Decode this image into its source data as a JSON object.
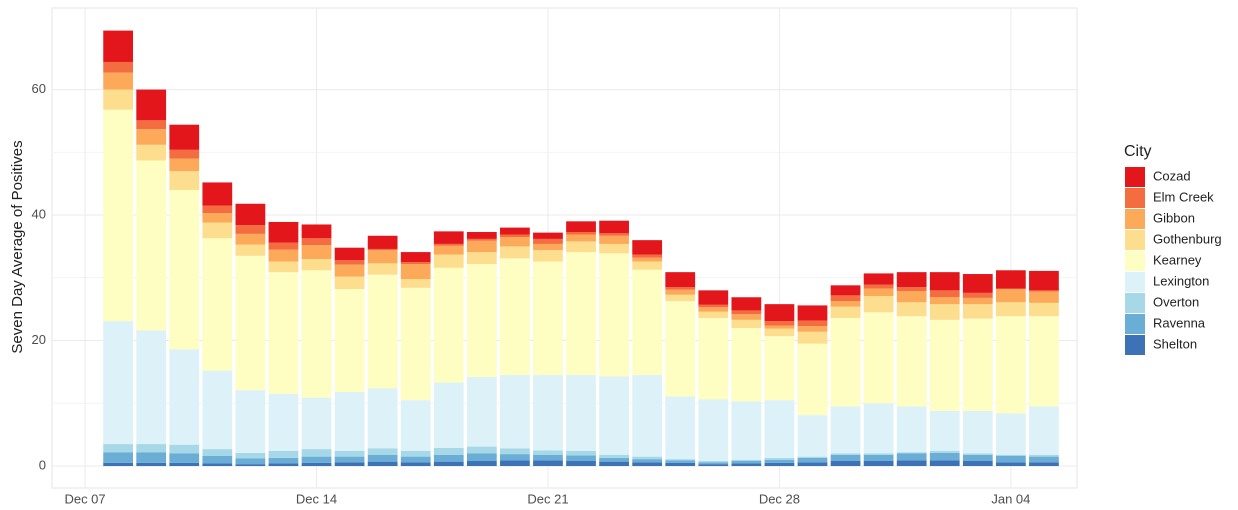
{
  "chart_data": {
    "type": "stacked_bar",
    "y_label": "Seven Day Average of Positives",
    "legend_title": "City",
    "legend": "right",
    "grid": true,
    "x": [
      "Dec 08",
      "Dec 09",
      "Dec 10",
      "Dec 11",
      "Dec 12",
      "Dec 13",
      "Dec 14",
      "Dec 15",
      "Dec 16",
      "Dec 17",
      "Dec 18",
      "Dec 19",
      "Dec 20",
      "Dec 21",
      "Dec 22",
      "Dec 23",
      "Dec 24",
      "Dec 25",
      "Dec 26",
      "Dec 27",
      "Dec 28",
      "Dec 29",
      "Dec 30",
      "Dec 31",
      "Jan 01",
      "Jan 02",
      "Jan 03",
      "Jan 04",
      "Jan 05"
    ],
    "xlim": [
      "Dec 06",
      "Jan 06"
    ],
    "xticks": [
      "Dec 07",
      "Dec 14",
      "Dec 21",
      "Dec 28",
      "Jan 04"
    ],
    "ylim": [
      -3.5,
      73
    ],
    "yticks": [
      0,
      20,
      40,
      60
    ],
    "series": [
      {
        "name": "Shelton",
        "color": "#3E72B6",
        "values": [
          0.5,
          0.5,
          0.5,
          0.4,
          0.3,
          0.4,
          0.5,
          0.6,
          0.7,
          0.6,
          0.7,
          0.8,
          0.9,
          0.9,
          0.8,
          0.7,
          0.6,
          0.5,
          0.3,
          0.4,
          0.5,
          0.6,
          0.8,
          0.8,
          0.9,
          0.9,
          0.8,
          0.6,
          0.6
        ]
      },
      {
        "name": "Ravenna",
        "color": "#6AADD5",
        "values": [
          1.7,
          1.7,
          1.5,
          1.2,
          0.9,
          0.9,
          1.0,
          0.9,
          1.1,
          0.9,
          1.1,
          1.2,
          1.0,
          0.9,
          0.9,
          0.6,
          0.5,
          0.4,
          0.3,
          0.4,
          0.5,
          0.7,
          1.0,
          1.0,
          1.1,
          1.2,
          1.0,
          1.0,
          0.9
        ]
      },
      {
        "name": "Overton",
        "color": "#A6D8E8",
        "values": [
          1.3,
          1.3,
          1.4,
          1.1,
          0.9,
          1.1,
          1.2,
          0.9,
          1.0,
          0.9,
          1.1,
          1.1,
          0.9,
          0.7,
          0.7,
          0.5,
          0.4,
          0.2,
          0.2,
          0.2,
          0.3,
          0.2,
          0.2,
          0.2,
          0.2,
          0.3,
          0.2,
          0.2,
          0.3
        ]
      },
      {
        "name": "Lexington",
        "color": "#DCF1F8",
        "values": [
          19.6,
          18.1,
          15.2,
          12.5,
          10.0,
          9.1,
          8.2,
          9.4,
          9.6,
          8.1,
          10.4,
          11.1,
          11.7,
          12.0,
          12.1,
          12.5,
          13.0,
          10.0,
          9.8,
          9.3,
          9.2,
          6.6,
          7.5,
          8.0,
          7.3,
          6.4,
          6.8,
          6.6,
          7.7
        ]
      },
      {
        "name": "Kearney",
        "color": "#FEFDC2",
        "values": [
          33.7,
          27.1,
          25.4,
          21.1,
          21.4,
          19.4,
          20.3,
          16.4,
          18.1,
          17.9,
          18.3,
          18.0,
          18.6,
          18.1,
          19.6,
          19.6,
          16.8,
          15.2,
          13.0,
          11.7,
          10.2,
          11.4,
          14.1,
          14.5,
          14.4,
          14.5,
          14.7,
          15.5,
          14.4
        ]
      },
      {
        "name": "Gothenburg",
        "color": "#FDDE8E",
        "values": [
          3.2,
          2.5,
          3.0,
          2.5,
          1.8,
          1.7,
          1.8,
          2.0,
          1.8,
          1.4,
          2.1,
          1.9,
          1.9,
          1.8,
          1.7,
          1.5,
          1.3,
          1.0,
          1.0,
          1.3,
          1.2,
          1.9,
          1.8,
          2.6,
          2.2,
          2.5,
          2.3,
          2.2,
          2.1
        ]
      },
      {
        "name": "Gibbon",
        "color": "#FCAA5A",
        "values": [
          2.7,
          2.5,
          2.0,
          1.5,
          1.7,
          1.9,
          2.2,
          1.9,
          2.1,
          2.4,
          1.4,
          1.8,
          1.5,
          1.0,
          1.1,
          1.3,
          0.6,
          0.8,
          0.7,
          0.9,
          0.5,
          0.9,
          0.9,
          1.2,
          1.8,
          1.1,
          1.0,
          2.1,
          1.8
        ]
      },
      {
        "name": "Elm Creek",
        "color": "#F46D40",
        "values": [
          1.7,
          1.4,
          1.4,
          1.2,
          1.4,
          1.1,
          1.1,
          0.7,
          0.2,
          0.3,
          0.3,
          0.3,
          0.4,
          0.8,
          0.4,
          0.4,
          0.5,
          0.4,
          0.4,
          0.6,
          0.7,
          0.9,
          0.9,
          0.6,
          0.6,
          1.1,
          0.8,
          0.1,
          0.2
        ]
      },
      {
        "name": "Cozad",
        "color": "#E3161B",
        "values": [
          5.0,
          4.9,
          4.0,
          3.7,
          3.4,
          3.3,
          2.2,
          2.0,
          2.1,
          1.6,
          2.0,
          1.1,
          1.1,
          1.0,
          1.7,
          2.0,
          2.3,
          2.4,
          2.3,
          2.1,
          2.7,
          2.4,
          1.6,
          1.8,
          2.4,
          2.9,
          3.0,
          2.9,
          3.1
        ]
      }
    ]
  }
}
